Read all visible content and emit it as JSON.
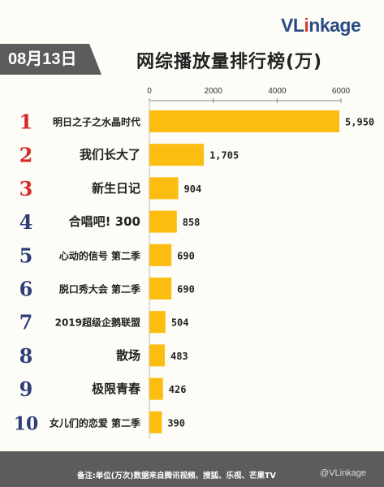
{
  "brand": {
    "logo_prefix": "VL",
    "logo_highlight": "i",
    "logo_suffix": "nkage"
  },
  "header": {
    "date": "08月13日",
    "title": "网综播放量排行榜(万)"
  },
  "chart_data": {
    "type": "bar",
    "orientation": "horizontal",
    "title": "网综播放量排行榜(万)",
    "xlim": [
      0,
      6000
    ],
    "xticks": [
      "0",
      "2000",
      "4000",
      "6000"
    ],
    "ranks": [
      "1",
      "2",
      "3",
      "4",
      "5",
      "6",
      "7",
      "8",
      "9",
      "10"
    ],
    "categories": [
      "明日之子之水晶时代",
      "我们长大了",
      "新生日记",
      "合唱吧! 300",
      "心动的信号 第二季",
      "脱口秀大会 第二季",
      "2019超级企鹅联盟",
      "散场",
      "极限青春",
      "女儿们的恋爱 第二季"
    ],
    "values": [
      5950,
      1705,
      904,
      858,
      690,
      690,
      504,
      483,
      426,
      390
    ],
    "value_labels": [
      "5,950",
      "1,705",
      "904",
      "858",
      "690",
      "690",
      "504",
      "483",
      "426",
      "390"
    ],
    "colors": {
      "bar": "#fbbd0f",
      "rank_top3": "#d42a2a",
      "rank_other": "#2e3f78"
    }
  },
  "footer": {
    "note": "备注:单位(万次)数据来自腾讯视频、搜狐、乐视、芒果TV",
    "watermark": "@VLinkage"
  }
}
